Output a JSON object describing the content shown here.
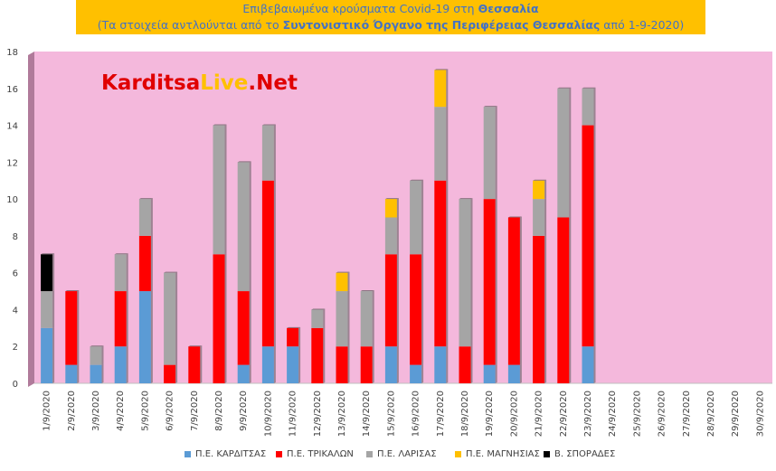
{
  "title": {
    "line1_pre": "Επιβεβαιωμένα κρούσματα Covid-19 στη ",
    "line1_bold": "Θεσσαλία",
    "line2_pre": "(Τα στοιχεία αντλούνται από το ",
    "line2_bold": "Συντονιστικό Όργανο της Περιφέρειας Θεσσαλίας",
    "line2_post": " από 1-9-2020)"
  },
  "watermark": {
    "part1": "Karditsa",
    "part2": "Live",
    "part3": ".Net"
  },
  "colors": {
    "plot_bg": "#F4B8DC",
    "kard": "#5B9BD5",
    "trik": "#FF0000",
    "lar": "#A5A5A5",
    "mag": "#FFC000",
    "spor": "#000000",
    "title_bg": "#FFC000",
    "title_text": "#4472C4"
  },
  "chart_data": {
    "type": "bar",
    "stacked": true,
    "ylim": [
      0,
      18
    ],
    "yticks": [
      0,
      2,
      4,
      6,
      8,
      10,
      12,
      14,
      16,
      18
    ],
    "grid": false,
    "legend_position": "bottom",
    "categories": [
      "1/9/2020",
      "2/9/2020",
      "3/9/2020",
      "4/9/2020",
      "5/9/2020",
      "6/9/2020",
      "7/9/2020",
      "8/9/2020",
      "9/9/2020",
      "10/9/2020",
      "11/9/2020",
      "12/9/2020",
      "13/9/2020",
      "14/9/2020",
      "15/9/2020",
      "16/9/2020",
      "17/9/2020",
      "18/9/2020",
      "19/9/2020",
      "20/9/2020",
      "21/9/2020",
      "22/9/2020",
      "23/9/2020",
      "24/9/2020",
      "25/9/2020",
      "26/9/2020",
      "27/9/2020",
      "28/9/2020",
      "29/9/2020",
      "30/9/2020"
    ],
    "series": [
      {
        "name": "Π.Ε. ΚΑΡΔΙΤΣΑΣ",
        "color": "#5B9BD5",
        "values": [
          3,
          1,
          1,
          2,
          5,
          0,
          0,
          0,
          1,
          2,
          2,
          0,
          0,
          0,
          2,
          1,
          2,
          0,
          1,
          1,
          0,
          0,
          2,
          0,
          0,
          0,
          0,
          0,
          0,
          0
        ]
      },
      {
        "name": "Π.Ε. ΤΡΙΚΑΛΩΝ",
        "color": "#FF0000",
        "values": [
          0,
          4,
          0,
          3,
          3,
          1,
          2,
          7,
          4,
          9,
          1,
          3,
          2,
          2,
          5,
          6,
          9,
          2,
          9,
          8,
          8,
          9,
          12,
          0,
          0,
          0,
          0,
          0,
          0,
          0
        ]
      },
      {
        "name": "Π.Ε. ΛΑΡΙΣΑΣ",
        "color": "#A5A5A5",
        "values": [
          2,
          0,
          1,
          2,
          2,
          5,
          0,
          7,
          7,
          3,
          0,
          1,
          3,
          3,
          2,
          4,
          4,
          8,
          5,
          0,
          2,
          7,
          2,
          0,
          0,
          0,
          0,
          0,
          0,
          0
        ]
      },
      {
        "name": "Π.Ε. ΜΑΓΝΗΣΙΑΣ",
        "color": "#FFC000",
        "values": [
          0,
          0,
          0,
          0,
          0,
          0,
          0,
          0,
          0,
          0,
          0,
          0,
          1,
          0,
          1,
          0,
          2,
          0,
          0,
          0,
          1,
          0,
          0,
          0,
          0,
          0,
          0,
          0,
          0,
          0
        ]
      },
      {
        "name": "Β. ΣΠΟΡΑΔΕΣ",
        "color": "#000000",
        "values": [
          2,
          0,
          0,
          0,
          0,
          0,
          0,
          0,
          0,
          0,
          0,
          0,
          0,
          0,
          0,
          0,
          0,
          0,
          0,
          0,
          0,
          0,
          0,
          0,
          0,
          0,
          0,
          0,
          0,
          0
        ]
      }
    ]
  }
}
